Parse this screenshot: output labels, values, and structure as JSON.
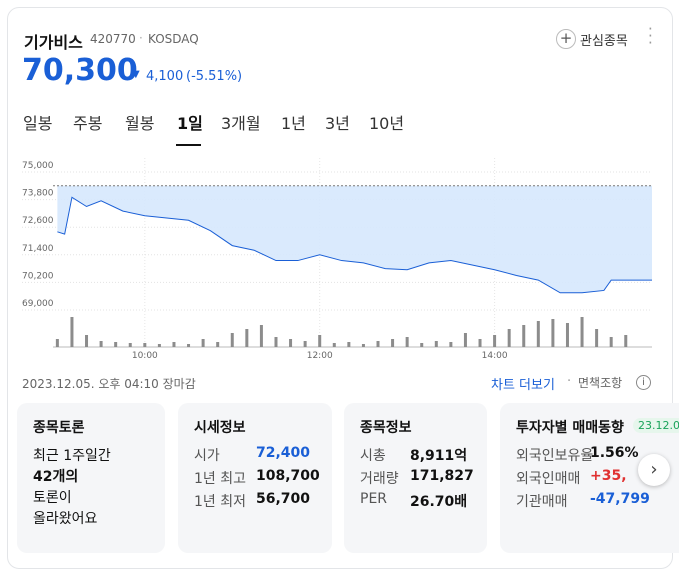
{
  "header": {
    "name": "기가비스",
    "code": "420770",
    "market": "KOSDAQ",
    "watch_button": "관심종목",
    "price": "70,300",
    "change": "4,100",
    "change_rate": "(-5.51%)"
  },
  "tabs": {
    "items": [
      "일봉",
      "주봉",
      "월봉",
      "1일",
      "3개월",
      "1년",
      "3년",
      "10년"
    ],
    "active": 3
  },
  "chart_data": [
    {
      "type": "line",
      "color": "#1a5fd6",
      "fill_color": "#d6e8fd",
      "x": [
        540,
        545,
        550,
        560,
        570,
        585,
        600,
        615,
        630,
        645,
        660,
        675,
        690,
        705,
        720,
        735,
        750,
        765,
        780,
        795,
        810,
        825,
        840,
        855,
        870,
        885,
        900,
        915,
        920,
        930,
        948
      ],
      "values": [
        72400,
        72300,
        73900,
        73500,
        73750,
        73300,
        73100,
        73000,
        72900,
        72450,
        71800,
        71600,
        71150,
        71150,
        71400,
        71150,
        71050,
        70800,
        70750,
        71050,
        71150,
        70950,
        70750,
        70500,
        70300,
        69750,
        69750,
        69850,
        70300,
        70300,
        70300
      ],
      "reference_line": 74400,
      "xlim": [
        537,
        948
      ],
      "xticks": [
        {
          "value": 600,
          "label": "10:00"
        },
        {
          "value": 720,
          "label": "12:00"
        },
        {
          "value": 840,
          "label": "14:00"
        }
      ],
      "ylim": [
        69000,
        75000
      ],
      "yticks": [
        {
          "value": 75000,
          "label": "75,000"
        },
        {
          "value": 73800,
          "label": "73,800"
        },
        {
          "value": 72600,
          "label": "72,600"
        },
        {
          "value": 71400,
          "label": "71,400"
        },
        {
          "value": 70200,
          "label": "70,200"
        },
        {
          "value": 69000,
          "label": "69,000"
        }
      ],
      "grid": true
    },
    {
      "type": "bar",
      "color": "#8c8c8c",
      "x": [
        540,
        550,
        560,
        570,
        580,
        590,
        600,
        610,
        620,
        630,
        640,
        650,
        660,
        670,
        680,
        690,
        700,
        710,
        720,
        730,
        740,
        750,
        760,
        770,
        780,
        790,
        800,
        810,
        820,
        830,
        840,
        850,
        860,
        870,
        880,
        890,
        900,
        910,
        920,
        930
      ],
      "values": [
        8,
        30,
        12,
        6,
        5,
        4,
        4,
        3,
        5,
        3,
        8,
        5,
        14,
        18,
        22,
        10,
        8,
        6,
        12,
        4,
        5,
        3,
        6,
        8,
        10,
        4,
        6,
        5,
        14,
        8,
        12,
        18,
        22,
        26,
        28,
        24,
        30,
        18,
        10,
        12
      ],
      "xlim": [
        537,
        948
      ],
      "ylim": [
        0,
        32
      ]
    }
  ],
  "footer": {
    "timestamp": "2023.12.05. 오후 04:10 장마감",
    "more_link": "차트 더보기",
    "disclaimer": "면책조항"
  },
  "cards": [
    {
      "title": "종목토론",
      "lines": [
        "최근 1주일간",
        "42개의",
        "토론이",
        "올라왔어요"
      ]
    },
    {
      "title": "시세정보",
      "rows": [
        [
          "시가",
          "72,400"
        ],
        [
          "1년 최고",
          "108,700"
        ],
        [
          "1년 최저",
          "56,700"
        ]
      ]
    },
    {
      "title": "종목정보",
      "rows": [
        [
          "시총",
          "8,911억"
        ],
        [
          "거래량",
          "171,827"
        ],
        [
          "PER",
          "26.70배"
        ]
      ]
    },
    {
      "title": "투자자별 매매동향",
      "badge": "23.12.0",
      "rows": [
        [
          "외국인보유율",
          "1.56%"
        ],
        [
          "외국인매매",
          "+35,"
        ],
        [
          "기관매매",
          "-47,799"
        ]
      ]
    }
  ]
}
